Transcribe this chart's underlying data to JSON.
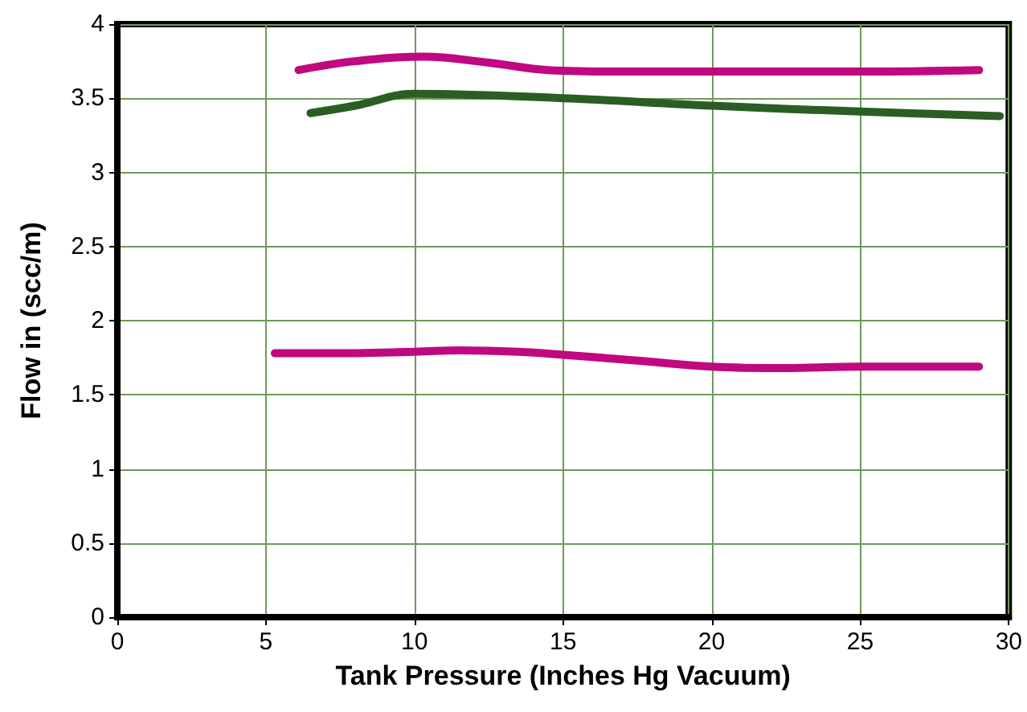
{
  "chart_data": {
    "type": "line",
    "xlabel": "Tank Pressure (Inches Hg Vacuum)",
    "ylabel": "Flow in (scc/m)",
    "xlim": [
      0,
      30
    ],
    "xticks": [
      0,
      5,
      10,
      15,
      20,
      25,
      30
    ],
    "ylim": [
      0,
      4
    ],
    "yticks": [
      0,
      0.5,
      1,
      1.5,
      2,
      2.5,
      3,
      3.5,
      4
    ],
    "grid": true,
    "marker": "none",
    "line_style": "solid",
    "series": [
      {
        "color": "#c0087f",
        "x": [
          6.1,
          8,
          10.3,
          12.5,
          14.5,
          17,
          20,
          25,
          29
        ],
        "values": [
          3.69,
          3.75,
          3.78,
          3.74,
          3.69,
          3.68,
          3.68,
          3.68,
          3.69
        ]
      },
      {
        "color": "#2a5e23",
        "x": [
          6.5,
          8,
          10,
          15,
          20,
          25,
          29.7
        ],
        "values": [
          3.4,
          3.45,
          3.53,
          3.5,
          3.45,
          3.41,
          3.38
        ]
      },
      {
        "color": "#c0087f",
        "x": [
          5.3,
          7,
          10,
          11.5,
          13.5,
          15,
          17.5,
          20,
          22.5,
          25,
          27.5,
          29
        ],
        "values": [
          1.78,
          1.78,
          1.79,
          1.8,
          1.79,
          1.77,
          1.73,
          1.69,
          1.68,
          1.69,
          1.69,
          1.69
        ]
      }
    ]
  }
}
